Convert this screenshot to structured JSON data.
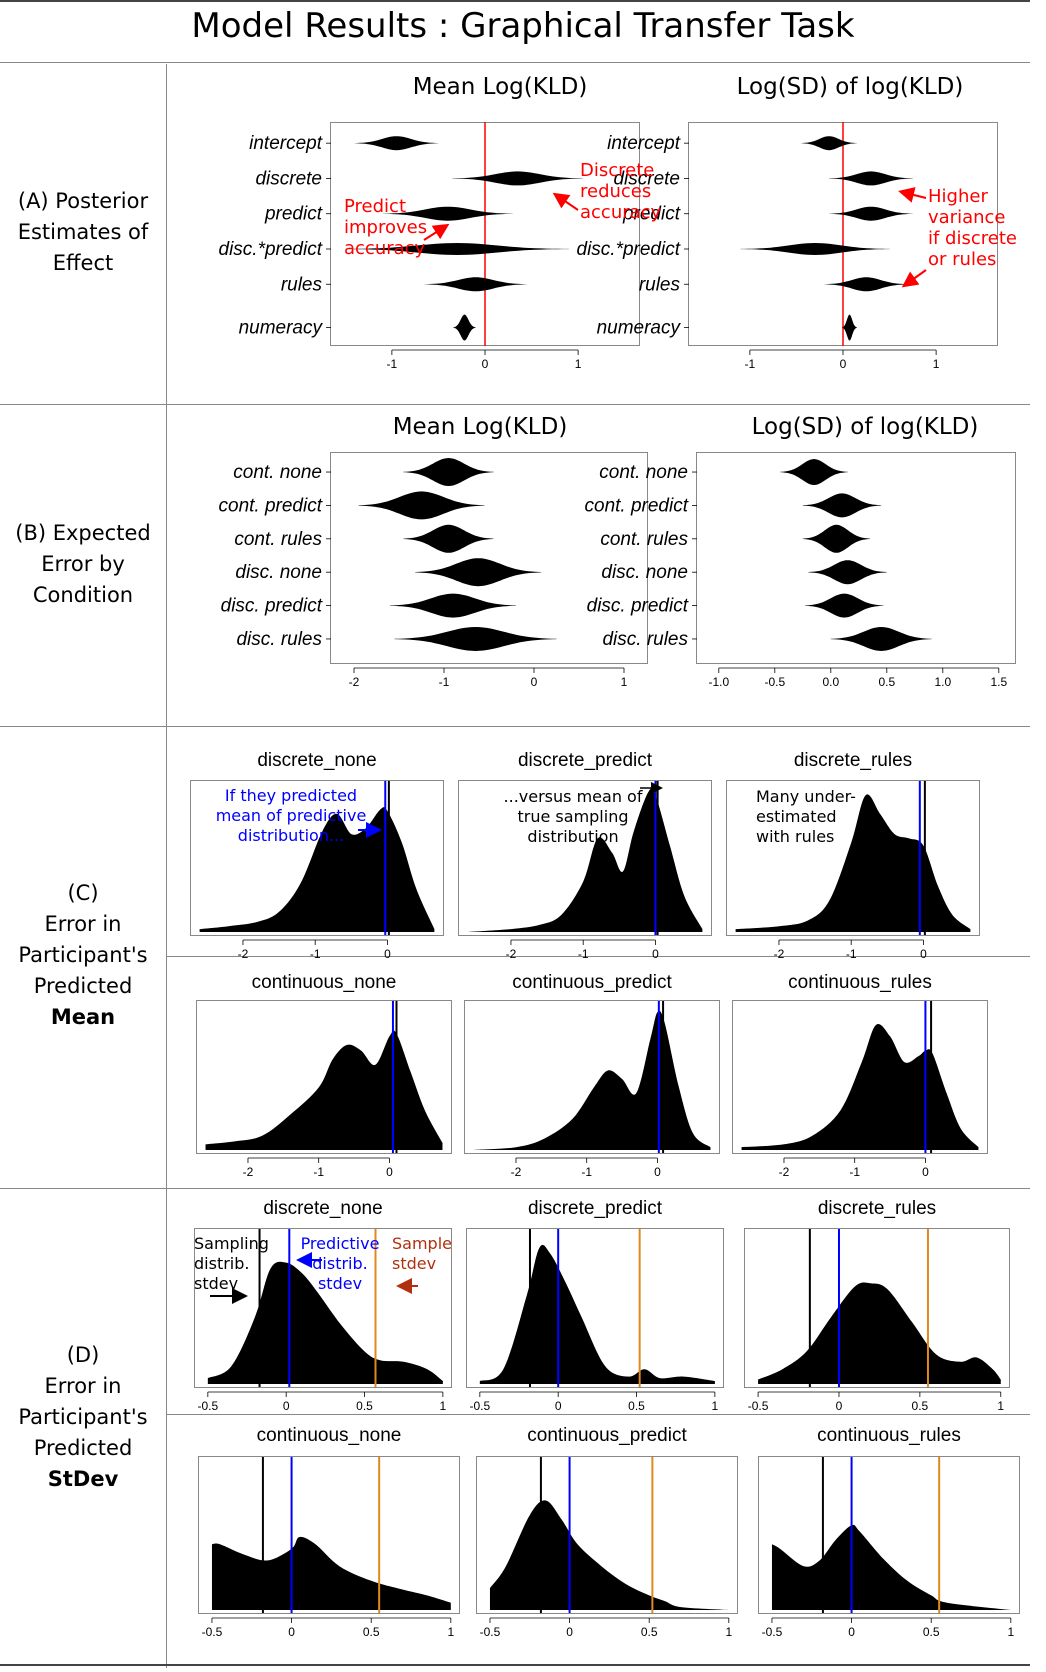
{
  "title": "Model Results : Graphical Transfer Task",
  "rows": {
    "a_lines": [
      "(A) Posterior",
      "Estimates of",
      "Effect"
    ],
    "b_lines": [
      "(B) Expected",
      "Error by",
      "Condition"
    ],
    "c_lines": [
      "(C)",
      "Error in",
      "Participant's",
      "Predicted"
    ],
    "c_bold": "Mean",
    "d_lines": [
      "(D)",
      "Error in",
      "Participant's",
      "Predicted"
    ],
    "d_bold": "StDev"
  },
  "annotations": {
    "a_discrete": [
      "Discrete",
      "reduces",
      "accuracy"
    ],
    "a_predict": [
      "Predict",
      "improves",
      "accuracy"
    ],
    "a_higher": [
      "Higher",
      "variance",
      "if discrete",
      "or rules"
    ],
    "c_blue": [
      "If they predicted",
      "mean of predictive",
      "distribution..."
    ],
    "c_versus": [
      "...versus mean of",
      "true sampling",
      "distribution"
    ],
    "c_many": [
      "Many under-",
      "estimated",
      "with rules"
    ],
    "d_sampling": [
      "Sampling",
      "distrib.",
      "stdev"
    ],
    "d_predictive": [
      "Predictive",
      "distrib.",
      "stdev"
    ],
    "d_sample": [
      "Sample",
      "stdev"
    ]
  },
  "colors": {
    "red": "#ff0000",
    "blue": "#0000ff",
    "orange": "#e08a1e",
    "brown": "#b03010"
  },
  "chart_data": [
    {
      "id": "A1",
      "type": "violin",
      "title": "Mean Log(KLD)",
      "categories": [
        "intercept",
        "discrete",
        "predict",
        "disc.*predict",
        "rules",
        "numeracy"
      ],
      "centers": [
        -0.95,
        0.35,
        -0.4,
        -0.3,
        -0.1,
        -0.22
      ],
      "spread": [
        0.45,
        0.7,
        0.7,
        1.2,
        0.55,
        0.12
      ],
      "width": [
        7,
        7,
        7,
        6,
        7,
        13
      ],
      "xlim": [
        -1.6,
        1.6
      ],
      "xticks": [
        -1,
        0,
        1
      ],
      "refline": 0
    },
    {
      "id": "A2",
      "type": "violin",
      "title": "Log(SD) of log(KLD)",
      "categories": [
        "intercept",
        "discrete",
        "predict",
        "disc.*predict",
        "rules",
        "numeracy"
      ],
      "centers": [
        -0.15,
        0.3,
        0.3,
        -0.3,
        0.25,
        0.07
      ],
      "spread": [
        0.3,
        0.45,
        0.45,
        0.8,
        0.45,
        0.08
      ],
      "width": [
        7,
        7,
        7,
        6,
        7,
        13
      ],
      "xlim": [
        -1.6,
        1.6
      ],
      "xticks": [
        -1,
        0,
        1
      ],
      "refline": 0
    },
    {
      "id": "B1",
      "type": "violin",
      "title": "Mean Log(KLD)",
      "categories": [
        "cont. none",
        "cont. predict",
        "cont. rules",
        "disc. none",
        "disc. predict",
        "disc. rules"
      ],
      "centers": [
        -0.95,
        -1.25,
        -0.95,
        -0.62,
        -0.9,
        -0.65
      ],
      "spread": [
        0.5,
        0.7,
        0.5,
        0.7,
        0.7,
        0.9
      ],
      "width": [
        14,
        14,
        14,
        14,
        12,
        12
      ],
      "xlim": [
        -2.2,
        1.2
      ],
      "xticks": [
        -2,
        -1,
        0,
        1
      ]
    },
    {
      "id": "B2",
      "type": "violin",
      "title": "Log(SD) of log(KLD)",
      "categories": [
        "cont. none",
        "cont. predict",
        "cont. rules",
        "disc. none",
        "disc. predict",
        "disc. rules"
      ],
      "centers": [
        -0.15,
        0.1,
        0.05,
        0.15,
        0.12,
        0.45
      ],
      "spread": [
        0.3,
        0.35,
        0.3,
        0.35,
        0.35,
        0.45
      ],
      "width": [
        13,
        12,
        14,
        12,
        12,
        12
      ],
      "xlim": [
        -1.15,
        1.6
      ],
      "xticks": [
        -1.0,
        -0.5,
        0.0,
        0.5,
        1.0,
        1.5
      ],
      "xticklabels": [
        "-1.0",
        "-0.5",
        "0.0",
        "0.5",
        "1.0",
        "1.5"
      ]
    },
    {
      "id": "C1",
      "type": "area",
      "title": "discrete_none",
      "x": [
        -2.6,
        -2.2,
        -1.8,
        -1.5,
        -1.2,
        -0.9,
        -0.7,
        -0.5,
        -0.3,
        -0.1,
        0.0,
        0.2,
        0.4,
        0.65
      ],
      "y": [
        0.02,
        0.04,
        0.07,
        0.14,
        0.34,
        0.7,
        0.82,
        0.68,
        0.72,
        0.85,
        0.84,
        0.62,
        0.3,
        0.02
      ],
      "xlim": [
        -2.65,
        0.7
      ],
      "xticks": [
        -2,
        -1,
        0
      ],
      "vlines": [
        {
          "x": -0.03,
          "color": "blue"
        },
        {
          "x": 0.02,
          "color": "black"
        }
      ]
    },
    {
      "id": "C2",
      "type": "area",
      "title": "discrete_predict",
      "x": [
        -2.6,
        -2.0,
        -1.6,
        -1.3,
        -1.0,
        -0.8,
        -0.6,
        -0.45,
        -0.3,
        -0.1,
        0.0,
        0.2,
        0.4,
        0.65
      ],
      "y": [
        0.0,
        0.02,
        0.05,
        0.12,
        0.35,
        0.65,
        0.55,
        0.42,
        0.7,
        0.97,
        0.95,
        0.6,
        0.25,
        0.02
      ],
      "xlim": [
        -2.65,
        0.7
      ],
      "xticks": [
        -2,
        -1,
        0
      ],
      "vlines": [
        {
          "x": 0.0,
          "color": "blue"
        },
        {
          "x": 0.03,
          "color": "black"
        }
      ]
    },
    {
      "id": "C3",
      "type": "area",
      "title": "discrete_rules",
      "x": [
        -2.6,
        -2.0,
        -1.6,
        -1.3,
        -1.0,
        -0.8,
        -0.6,
        -0.4,
        -0.2,
        0.0,
        0.2,
        0.4,
        0.65
      ],
      "y": [
        0.02,
        0.04,
        0.08,
        0.22,
        0.62,
        0.95,
        0.82,
        0.68,
        0.65,
        0.6,
        0.32,
        0.12,
        0.02
      ],
      "xlim": [
        -2.65,
        0.7
      ],
      "xticks": [
        -2,
        -1,
        0
      ],
      "vlines": [
        {
          "x": -0.05,
          "color": "blue"
        },
        {
          "x": 0.02,
          "color": "black"
        }
      ]
    },
    {
      "id": "C4",
      "type": "area",
      "title": "continuous_none",
      "x": [
        -2.6,
        -2.2,
        -1.8,
        -1.4,
        -1.0,
        -0.8,
        -0.6,
        -0.4,
        -0.2,
        0.0,
        0.1,
        0.3,
        0.5,
        0.75
      ],
      "y": [
        0.04,
        0.06,
        0.1,
        0.25,
        0.44,
        0.64,
        0.74,
        0.7,
        0.6,
        0.8,
        0.82,
        0.55,
        0.28,
        0.05
      ],
      "xlim": [
        -2.65,
        0.8
      ],
      "xticks": [
        -2,
        -1,
        0
      ],
      "vlines": [
        {
          "x": 0.05,
          "color": "blue"
        },
        {
          "x": 0.1,
          "color": "black"
        }
      ]
    },
    {
      "id": "C5",
      "type": "area",
      "title": "continuous_predict",
      "x": [
        -2.6,
        -2.0,
        -1.6,
        -1.2,
        -0.9,
        -0.7,
        -0.5,
        -0.3,
        -0.1,
        0.0,
        0.1,
        0.3,
        0.5,
        0.75
      ],
      "y": [
        0.0,
        0.02,
        0.08,
        0.22,
        0.44,
        0.56,
        0.5,
        0.4,
        0.78,
        0.97,
        0.9,
        0.45,
        0.12,
        0.02
      ],
      "xlim": [
        -2.65,
        0.8
      ],
      "xticks": [
        -2,
        -1,
        0
      ],
      "vlines": [
        {
          "x": 0.02,
          "color": "blue"
        },
        {
          "x": 0.08,
          "color": "black"
        }
      ]
    },
    {
      "id": "C6",
      "type": "area",
      "title": "continuous_rules",
      "x": [
        -2.6,
        -2.0,
        -1.6,
        -1.2,
        -0.9,
        -0.7,
        -0.5,
        -0.3,
        -0.1,
        0.0,
        0.1,
        0.3,
        0.5,
        0.75
      ],
      "y": [
        0.02,
        0.04,
        0.1,
        0.28,
        0.62,
        0.88,
        0.8,
        0.62,
        0.66,
        0.7,
        0.68,
        0.4,
        0.15,
        0.02
      ],
      "xlim": [
        -2.65,
        0.8
      ],
      "xticks": [
        -2,
        -1,
        0
      ],
      "vlines": [
        {
          "x": 0.0,
          "color": "blue"
        },
        {
          "x": 0.08,
          "color": "black"
        }
      ]
    },
    {
      "id": "D1",
      "type": "area",
      "title": "discrete_none",
      "x": [
        -0.5,
        -0.35,
        -0.2,
        -0.1,
        0.0,
        0.1,
        0.2,
        0.35,
        0.5,
        0.6,
        0.75,
        0.9,
        1.0
      ],
      "y": [
        0.04,
        0.12,
        0.45,
        0.78,
        0.82,
        0.75,
        0.62,
        0.4,
        0.22,
        0.16,
        0.15,
        0.1,
        0.02
      ],
      "xlim": [
        -0.55,
        1.02
      ],
      "xticks": [
        -0.5,
        0,
        0.5,
        1
      ],
      "xticklabels": [
        "-0.5",
        "0",
        "0.5",
        "1"
      ],
      "vlines": [
        {
          "x": -0.17,
          "color": "black"
        },
        {
          "x": 0.02,
          "color": "blue"
        },
        {
          "x": 0.57,
          "color": "orange"
        }
      ]
    },
    {
      "id": "D2",
      "type": "area",
      "title": "discrete_predict",
      "x": [
        -0.5,
        -0.35,
        -0.2,
        -0.12,
        -0.05,
        0.05,
        0.15,
        0.3,
        0.45,
        0.55,
        0.65,
        0.8,
        1.0
      ],
      "y": [
        0.02,
        0.1,
        0.6,
        0.92,
        0.88,
        0.68,
        0.45,
        0.12,
        0.05,
        0.1,
        0.04,
        0.05,
        0.02
      ],
      "xlim": [
        -0.55,
        1.02
      ],
      "xticks": [
        -0.5,
        0,
        0.5,
        1
      ],
      "xticklabels": [
        "-0.5",
        "0",
        "0.5",
        "1"
      ],
      "vlines": [
        {
          "x": -0.18,
          "color": "black"
        },
        {
          "x": 0.0,
          "color": "blue"
        },
        {
          "x": 0.52,
          "color": "orange"
        }
      ]
    },
    {
      "id": "D3",
      "type": "area",
      "title": "discrete_rules",
      "x": [
        -0.5,
        -0.35,
        -0.2,
        -0.05,
        0.1,
        0.2,
        0.3,
        0.45,
        0.6,
        0.75,
        0.85,
        0.95,
        1.0
      ],
      "y": [
        0.03,
        0.1,
        0.22,
        0.45,
        0.66,
        0.68,
        0.64,
        0.42,
        0.2,
        0.15,
        0.18,
        0.1,
        0.03
      ],
      "xlim": [
        -0.55,
        1.02
      ],
      "xticks": [
        -0.5,
        0,
        0.5,
        1
      ],
      "xticklabels": [
        "-0.5",
        "0",
        "0.5",
        "1"
      ],
      "vlines": [
        {
          "x": -0.18,
          "color": "black"
        },
        {
          "x": 0.0,
          "color": "blue"
        },
        {
          "x": 0.55,
          "color": "orange"
        }
      ]
    },
    {
      "id": "D4",
      "type": "area",
      "title": "continuous_none",
      "x": [
        -0.5,
        -0.45,
        -0.3,
        -0.15,
        0.0,
        0.05,
        0.15,
        0.3,
        0.5,
        0.7,
        0.85,
        1.0
      ],
      "y": [
        0.45,
        0.45,
        0.38,
        0.34,
        0.42,
        0.5,
        0.45,
        0.3,
        0.2,
        0.14,
        0.1,
        0.05
      ],
      "xlim": [
        -0.55,
        1.02
      ],
      "xticks": [
        -0.5,
        0,
        0.5,
        1
      ],
      "xticklabels": [
        "-0.5",
        "0",
        "0.5",
        "1"
      ],
      "vlines": [
        {
          "x": -0.18,
          "color": "black"
        },
        {
          "x": 0.0,
          "color": "blue"
        },
        {
          "x": 0.55,
          "color": "orange"
        }
      ]
    },
    {
      "id": "D5",
      "type": "area",
      "title": "continuous_predict",
      "x": [
        -0.5,
        -0.4,
        -0.25,
        -0.15,
        -0.05,
        0.05,
        0.2,
        0.35,
        0.5,
        0.6,
        0.7,
        1.0
      ],
      "y": [
        0.15,
        0.3,
        0.65,
        0.75,
        0.62,
        0.45,
        0.3,
        0.18,
        0.1,
        0.06,
        0.02,
        0.0
      ],
      "xlim": [
        -0.55,
        1.02
      ],
      "xticks": [
        -0.5,
        0,
        0.5,
        1
      ],
      "xticklabels": [
        "-0.5",
        "0",
        "0.5",
        "1"
      ],
      "vlines": [
        {
          "x": -0.18,
          "color": "black"
        },
        {
          "x": 0.0,
          "color": "blue"
        },
        {
          "x": 0.52,
          "color": "orange"
        }
      ]
    },
    {
      "id": "D6",
      "type": "area",
      "title": "continuous_rules",
      "x": [
        -0.5,
        -0.45,
        -0.3,
        -0.2,
        -0.1,
        0.0,
        0.05,
        0.2,
        0.35,
        0.5,
        0.6,
        1.0
      ],
      "y": [
        0.45,
        0.42,
        0.3,
        0.34,
        0.48,
        0.58,
        0.54,
        0.35,
        0.2,
        0.1,
        0.05,
        0.0
      ],
      "xlim": [
        -0.55,
        1.02
      ],
      "xticks": [
        -0.5,
        0,
        0.5,
        1
      ],
      "xticklabels": [
        "-0.5",
        "0",
        "0.5",
        "1"
      ],
      "vlines": [
        {
          "x": -0.18,
          "color": "black"
        },
        {
          "x": 0.0,
          "color": "blue"
        },
        {
          "x": 0.55,
          "color": "orange"
        }
      ]
    }
  ]
}
